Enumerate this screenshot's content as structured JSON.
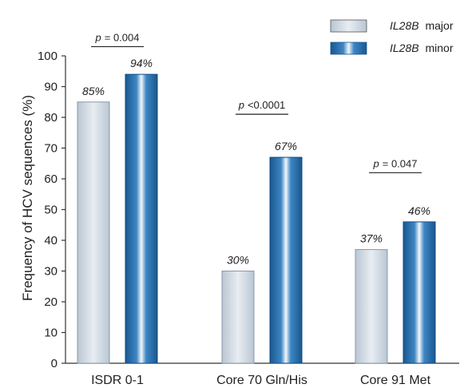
{
  "chart_data": {
    "type": "bar",
    "title": "",
    "xlabel": "",
    "ylabel": "Frequency of HCV sequences (%)",
    "ylim": [
      0,
      100
    ],
    "yticks": [
      0,
      10,
      20,
      30,
      40,
      50,
      60,
      70,
      80,
      90,
      100
    ],
    "categories": [
      "ISDR 0-1",
      "Core 70 Gln/His",
      "Core 91 Met"
    ],
    "series": [
      {
        "name": "major",
        "name_italic_prefix": "IL28B",
        "values": [
          85,
          30,
          37
        ],
        "labels": [
          "85%",
          "30%",
          "37%"
        ],
        "color": "#c8d3de"
      },
      {
        "name": "minor",
        "name_italic_prefix": "IL28B",
        "values": [
          94,
          67,
          46
        ],
        "labels": [
          "94%",
          "67%",
          "46%"
        ],
        "color": "#1d5f9c"
      }
    ],
    "annotations": [
      {
        "category": "ISDR 0-1",
        "p_symbol": "p",
        "text": "= 0.004",
        "y": 103
      },
      {
        "category": "Core 70 Gln/His",
        "p_symbol": "p",
        "text": "<0.0001",
        "y": 81
      },
      {
        "category": "Core 91 Met",
        "p_symbol": "p",
        "text": "= 0.047",
        "y": 62
      }
    ],
    "legend_position": "top-right",
    "grid": false
  }
}
